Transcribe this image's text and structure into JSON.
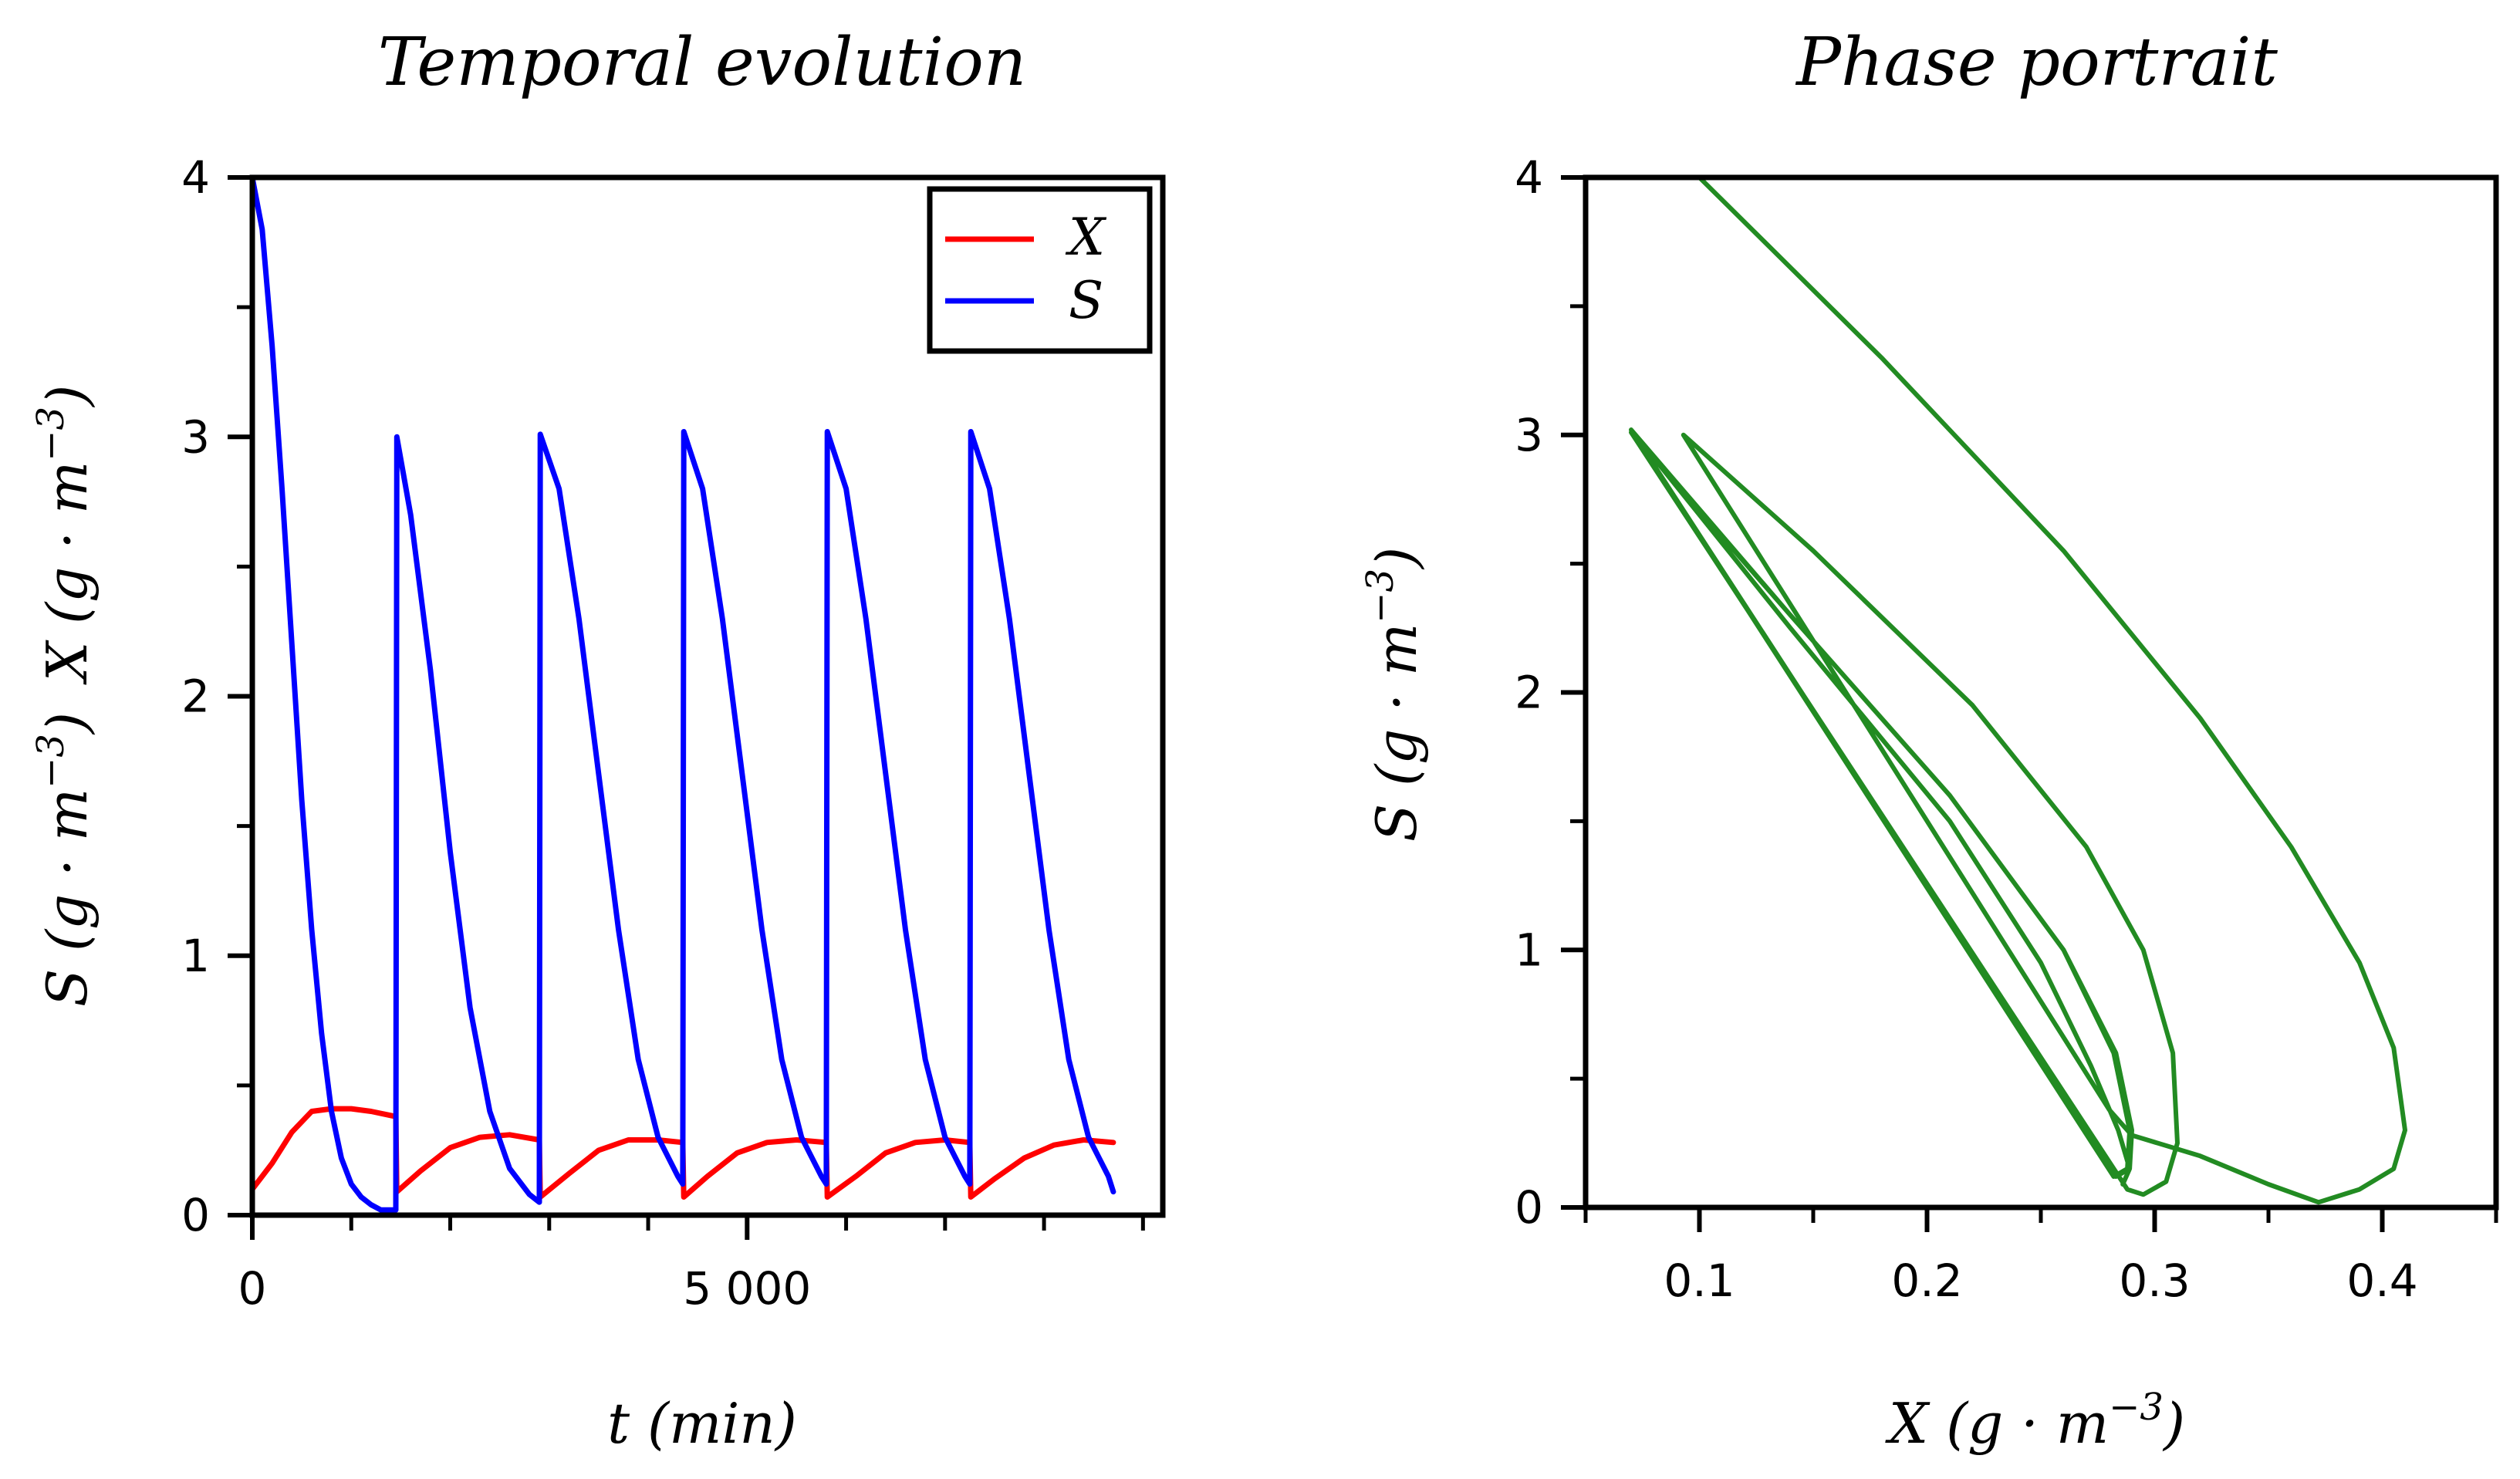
{
  "chart_data": [
    {
      "type": "line",
      "title": "Temporal evolution",
      "xlabel": {
        "var": "t",
        "unit": "(min)"
      },
      "ylabel": {
        "s_var": "S",
        "x_var": "X",
        "unit_open": "(g · m",
        "unit_exp": "−3",
        "unit_close": ")"
      },
      "xlim": [
        0,
        9200
      ],
      "ylim": [
        0,
        4
      ],
      "xticks": [
        {
          "value": 0,
          "label": "0"
        },
        {
          "value": 5000,
          "label": "5 000"
        }
      ],
      "xminor": [
        1000,
        2000,
        3000,
        4000,
        6000,
        7000,
        8000,
        9000
      ],
      "yticks": [
        {
          "value": 0,
          "label": "0"
        },
        {
          "value": 1,
          "label": "1"
        },
        {
          "value": 2,
          "label": "2"
        },
        {
          "value": 3,
          "label": "3"
        },
        {
          "value": 4,
          "label": "4"
        }
      ],
      "yminor": [
        0.5,
        1.5,
        2.5,
        3.5
      ],
      "legend": {
        "position": "top-right",
        "entries": [
          {
            "label": "X",
            "color": "#ff0000"
          },
          {
            "label": "S",
            "color": "#0000ff"
          }
        ]
      },
      "series": [
        {
          "name": "X",
          "color": "#ff0000",
          "x": [
            0,
            200,
            400,
            600,
            800,
            1000,
            1200,
            1450,
            1460,
            1700,
            2000,
            2300,
            2600,
            2900,
            2910,
            3200,
            3500,
            3800,
            4100,
            4350,
            4360,
            4600,
            4900,
            5200,
            5500,
            5800,
            5810,
            6100,
            6400,
            6700,
            7000,
            7250,
            7260,
            7500,
            7800,
            8100,
            8400,
            8700
          ],
          "y": [
            0.1,
            0.2,
            0.32,
            0.4,
            0.41,
            0.41,
            0.4,
            0.38,
            0.09,
            0.17,
            0.26,
            0.3,
            0.31,
            0.29,
            0.07,
            0.16,
            0.25,
            0.29,
            0.29,
            0.28,
            0.07,
            0.15,
            0.24,
            0.28,
            0.29,
            0.28,
            0.07,
            0.15,
            0.24,
            0.28,
            0.29,
            0.28,
            0.07,
            0.14,
            0.22,
            0.27,
            0.29,
            0.28
          ]
        },
        {
          "name": "S",
          "color": "#0000ff",
          "x": [
            0,
            100,
            200,
            300,
            400,
            500,
            600,
            700,
            800,
            900,
            1000,
            1100,
            1200,
            1300,
            1400,
            1450,
            1460,
            1600,
            1800,
            2000,
            2200,
            2400,
            2600,
            2800,
            2900,
            2910,
            3100,
            3300,
            3500,
            3700,
            3900,
            4100,
            4300,
            4350,
            4360,
            4550,
            4750,
            4950,
            5150,
            5350,
            5550,
            5750,
            5800,
            5810,
            6000,
            6200,
            6400,
            6600,
            6800,
            7000,
            7200,
            7250,
            7260,
            7450,
            7650,
            7850,
            8050,
            8250,
            8450,
            8650,
            8700
          ],
          "y": [
            4.0,
            3.8,
            3.35,
            2.8,
            2.2,
            1.6,
            1.1,
            0.7,
            0.4,
            0.22,
            0.12,
            0.07,
            0.04,
            0.02,
            0.02,
            0.02,
            3.0,
            2.7,
            2.1,
            1.4,
            0.8,
            0.4,
            0.18,
            0.08,
            0.05,
            3.01,
            2.8,
            2.3,
            1.7,
            1.1,
            0.6,
            0.3,
            0.15,
            0.12,
            3.02,
            2.8,
            2.3,
            1.7,
            1.1,
            0.6,
            0.3,
            0.15,
            0.12,
            3.02,
            2.8,
            2.3,
            1.7,
            1.1,
            0.6,
            0.3,
            0.15,
            0.12,
            3.02,
            2.8,
            2.3,
            1.7,
            1.1,
            0.6,
            0.3,
            0.15,
            0.09
          ]
        }
      ]
    },
    {
      "type": "line",
      "title": "Phase portrait",
      "xlabel": {
        "var": "X",
        "unit_open": "(g · m",
        "unit_exp": "−3",
        "unit_close": ")"
      },
      "ylabel": {
        "var": "S",
        "unit_open": "(g · m",
        "unit_exp": "−3",
        "unit_close": ")"
      },
      "xlim": [
        0.05,
        0.45
      ],
      "ylim": [
        0,
        4
      ],
      "xticks": [
        {
          "value": 0.1,
          "label": "0.1"
        },
        {
          "value": 0.2,
          "label": "0.2"
        },
        {
          "value": 0.3,
          "label": "0.3"
        },
        {
          "value": 0.4,
          "label": "0.4"
        }
      ],
      "xminor": [
        0.05,
        0.15,
        0.25,
        0.35,
        0.45
      ],
      "yticks": [
        {
          "value": 0,
          "label": "0"
        },
        {
          "value": 1,
          "label": "1"
        },
        {
          "value": 2,
          "label": "2"
        },
        {
          "value": 3,
          "label": "3"
        },
        {
          "value": 4,
          "label": "4"
        }
      ],
      "yminor": [
        0.5,
        1.5,
        2.5,
        3.5
      ],
      "series": [
        {
          "name": "trajectory",
          "color": "#228b22",
          "x": [
            0.1,
            0.18,
            0.26,
            0.32,
            0.36,
            0.39,
            0.405,
            0.41,
            0.405,
            0.39,
            0.372,
            0.35,
            0.32,
            0.29,
            0.28,
            0.093,
            0.15,
            0.22,
            0.27,
            0.295,
            0.308,
            0.31,
            0.305,
            0.295,
            0.288,
            0.07,
            0.14,
            0.21,
            0.26,
            0.283,
            0.29,
            0.289,
            0.283,
            0.07,
            0.14,
            0.21,
            0.26,
            0.282,
            0.289,
            0.288,
            0.282,
            0.07,
            0.14,
            0.21,
            0.26,
            0.282,
            0.289,
            0.288,
            0.282,
            0.07,
            0.14,
            0.21,
            0.25,
            0.272,
            0.284,
            0.289,
            0.286
          ],
          "y": [
            4.0,
            3.3,
            2.55,
            1.9,
            1.4,
            0.95,
            0.62,
            0.3,
            0.15,
            0.07,
            0.02,
            0.09,
            0.2,
            0.28,
            0.38,
            3.0,
            2.55,
            1.95,
            1.4,
            1.0,
            0.6,
            0.25,
            0.1,
            0.05,
            0.07,
            3.01,
            2.3,
            1.6,
            1.0,
            0.6,
            0.3,
            0.15,
            0.12,
            3.02,
            2.3,
            1.6,
            1.0,
            0.6,
            0.3,
            0.15,
            0.12,
            3.02,
            2.3,
            1.6,
            1.0,
            0.6,
            0.3,
            0.15,
            0.12,
            3.02,
            2.25,
            1.5,
            0.95,
            0.55,
            0.3,
            0.15,
            0.09
          ]
        }
      ]
    }
  ]
}
